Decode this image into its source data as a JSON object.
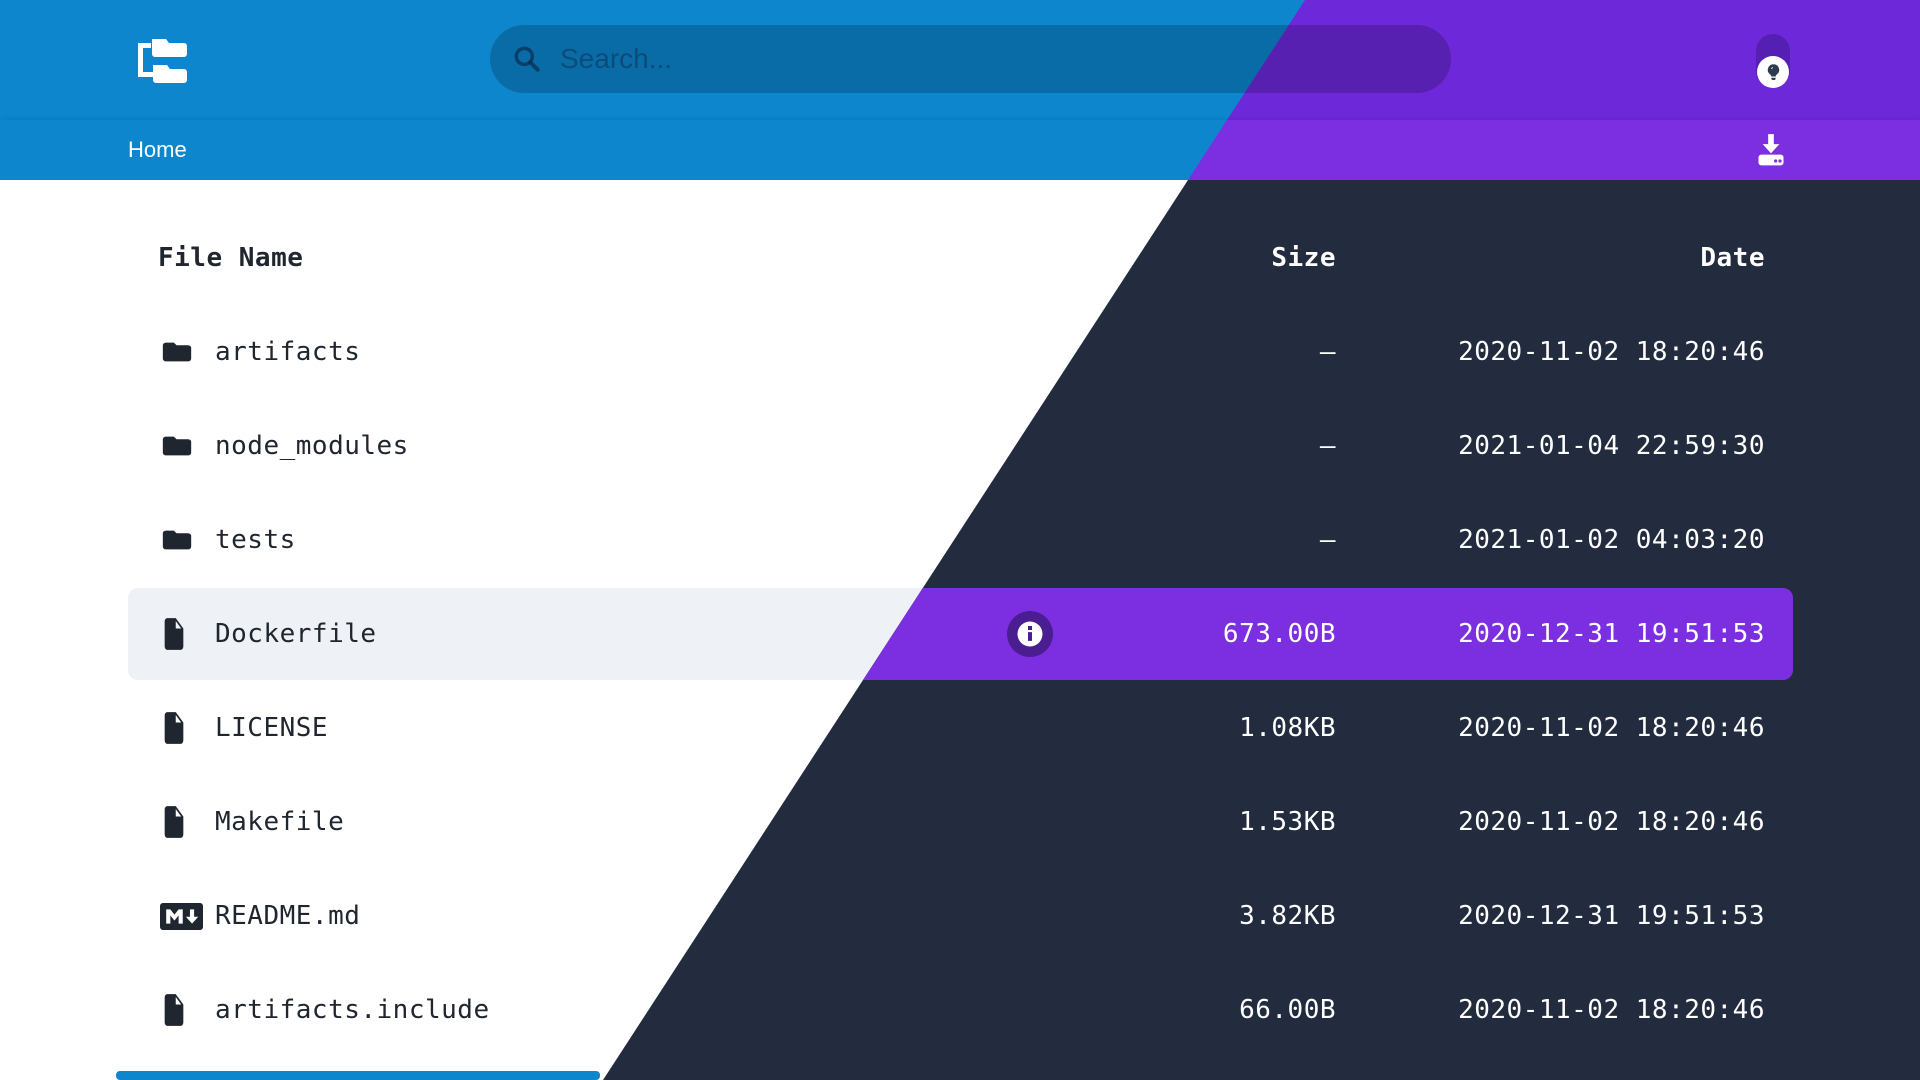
{
  "colors": {
    "blue": "#0d86ce",
    "purple_header": "#6d28d9",
    "purple_bar": "#7c2fe0",
    "dark_bg": "#222c3e",
    "light_bg": "#ffffff",
    "row_light": "#eef1f6",
    "info_btn_bg": "#4a1d90",
    "toggle_track": "#551fb3",
    "text_dark": "#20262f"
  },
  "header": {
    "logo_icon": "folder-tree-icon",
    "search": {
      "placeholder": "Search...",
      "value": "",
      "icon": "search-icon"
    },
    "theme_toggle": {
      "icon": "lightbulb-icon"
    }
  },
  "breadcrumb": {
    "path": "Home",
    "download_icon": "download-icon"
  },
  "table": {
    "columns": {
      "name": "File Name",
      "size": "Size",
      "date": "Date"
    },
    "rows": [
      {
        "icon": "folder",
        "name": "artifacts",
        "size": "—",
        "date": "2020-11-02 18:20:46",
        "selected": false
      },
      {
        "icon": "folder",
        "name": "node_modules",
        "size": "—",
        "date": "2021-01-04 22:59:30",
        "selected": false
      },
      {
        "icon": "folder",
        "name": "tests",
        "size": "—",
        "date": "2021-01-02 04:03:20",
        "selected": false
      },
      {
        "icon": "file",
        "name": "Dockerfile",
        "size": "673.00B",
        "date": "2020-12-31 19:51:53",
        "selected": true
      },
      {
        "icon": "file",
        "name": "LICENSE",
        "size": "1.08KB",
        "date": "2020-11-02 18:20:46",
        "selected": false
      },
      {
        "icon": "file",
        "name": "Makefile",
        "size": "1.53KB",
        "date": "2020-11-02 18:20:46",
        "selected": false
      },
      {
        "icon": "markdown",
        "name": "README.md",
        "size": "3.82KB",
        "date": "2020-12-31 19:51:53",
        "selected": false
      },
      {
        "icon": "file",
        "name": "artifacts.include",
        "size": "66.00B",
        "date": "2020-11-02 18:20:46",
        "selected": false
      }
    ]
  }
}
